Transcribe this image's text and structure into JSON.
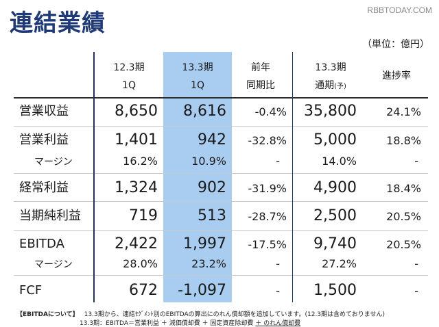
{
  "title": "連結業績",
  "watermark": "RBBTODAY.COM",
  "unit": "（単位：億円）",
  "headers": {
    "col1": [
      "12.3期",
      "1Q"
    ],
    "col2": [
      "13.3期",
      "1Q"
    ],
    "col3": [
      "前年",
      "同期比"
    ],
    "col4": [
      "13.3期",
      "通期",
      "(予)"
    ],
    "col5": "進捗率"
  },
  "rows": [
    {
      "label": "営業収益",
      "c1": "8,650",
      "c2": "8,616",
      "c3": "-0.4%",
      "c4": "35,800",
      "c5": "24.1%"
    },
    {
      "label": "営業利益",
      "c1": "1,401",
      "c2": "942",
      "c3": "-32.8%",
      "c4": "5,000",
      "c5": "18.8%"
    },
    {
      "label": "マージン",
      "c1": "16.2%",
      "c2": "10.9%",
      "c3": "-",
      "c4": "14.0%",
      "c5": "-"
    },
    {
      "label": "経常利益",
      "c1": "1,324",
      "c2": "902",
      "c3": "-31.9%",
      "c4": "4,900",
      "c5": "18.4%"
    },
    {
      "label": "当期純利益",
      "c1": "719",
      "c2": "513",
      "c3": "-28.7%",
      "c4": "2,500",
      "c5": "20.5%"
    },
    {
      "label": "EBITDA",
      "c1": "2,422",
      "c2": "1,997",
      "c3": "-17.5%",
      "c4": "9,740",
      "c5": "20.5%"
    },
    {
      "label": "マージン",
      "c1": "28.0%",
      "c2": "23.2%",
      "c3": "-",
      "c4": "27.2%",
      "c5": "-"
    },
    {
      "label": "FCF",
      "c1": "672",
      "c2": "-1,097",
      "c3": "-",
      "c4": "1,500",
      "c5": "-"
    }
  ],
  "footer": {
    "tag": "【EBITDAについて】",
    "line1": "13.3期から、連結ｾｸﾞﾒﾝﾄ別のEBITDAの算出にのれん償却額を追加しています。(12.3期は含めておりません)",
    "line2_prefix": "13.3期：EBITDA＝営業利益 ＋ 減価償却費 ＋ 固定資産除却費 ",
    "line2_underlined": "＋ のれん償却費"
  }
}
